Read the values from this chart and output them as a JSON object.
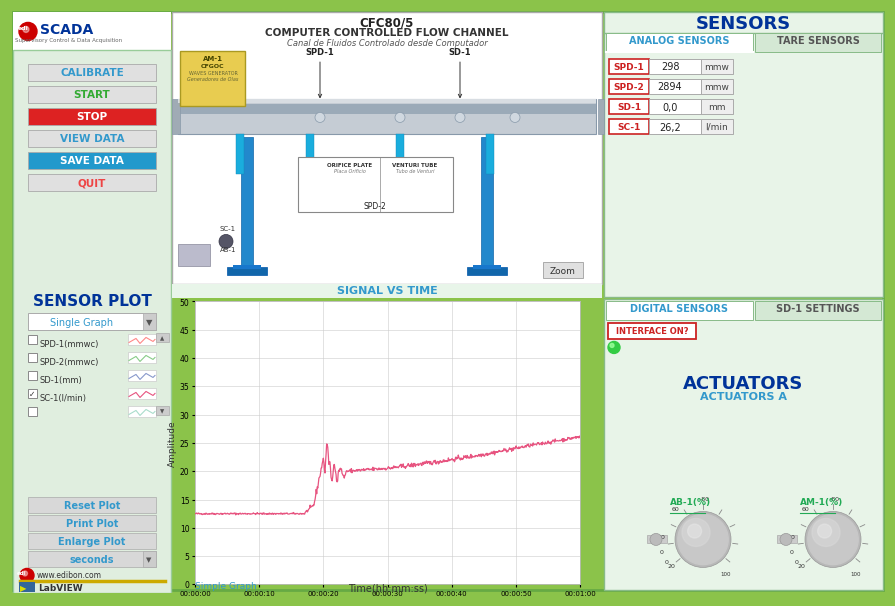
{
  "title": "CFC80/5",
  "subtitle1": "COMPUTER CONTROLLED FLOW CHANNEL",
  "subtitle2": "Canal de Fluidos Controlado desde Computador",
  "bg_outer": "#8bc34a",
  "bg_inner": "#e8f5e9",
  "bg_left_panel": "#e0eedf",
  "bg_right_panel": "#e8f4e8",
  "bg_diagram": "#f0f8f0",
  "scada_title": "SENSORS",
  "analog_sensors_tab": "ANALOG SENSORS",
  "tare_sensors_tab": "TARE SENSORS",
  "digital_sensors_tab": "DIGITAL SENSORS",
  "sd1_settings_tab": "SD-1 SETTINGS",
  "sensor_labels": [
    "SPD-1",
    "SPD-2",
    "SD-1",
    "SC-1"
  ],
  "sensor_values": [
    "298",
    "2894",
    "0,0",
    "26,2"
  ],
  "sensor_units": [
    "mmw",
    "mmw",
    "mm",
    "l/min"
  ],
  "interface_label": "INTERFACE ON?",
  "actuators_title": "ACTUATORS",
  "actuators_sub": "ACTUATORS A",
  "ab1_label": "AB-1(%)",
  "am1_label": "AM-1(%)",
  "signal_vs_time": "SIGNAL VS TIME",
  "sensor_plot_title": "SENSOR PLOT",
  "chart_xlabel": "Time(hh:mm:ss)",
  "chart_ylabel": "Amplitude",
  "chart_title_bottom": "Simple Graph",
  "yticks": [
    0,
    5,
    10,
    15,
    20,
    25,
    30,
    35,
    40,
    45,
    50
  ],
  "xtick_labels": [
    "00:00:00",
    "00:00:10",
    "00:00:20",
    "00:00:30",
    "00:00:40",
    "00:00:50",
    "00:01:00"
  ],
  "left_buttons": [
    "CALIBRATE",
    "START",
    "STOP",
    "VIEW DATA",
    "SAVE DATA",
    "QUIT"
  ],
  "btn_bg": [
    "#e0e0e0",
    "#e0e0e0",
    "#dd2222",
    "#e0e0e0",
    "#2299cc",
    "#e0e0e0"
  ],
  "btn_tc": [
    "#3399cc",
    "#33aa33",
    "#ffffff",
    "#3399cc",
    "#ffffff",
    "#ee4444"
  ],
  "legend_items": [
    "SPD-1(mmwc)",
    "SPD-2(mmwc)",
    "SD-1(mm)",
    "SC-1(l/min)",
    ""
  ],
  "legend_checked": [
    false,
    false,
    false,
    true,
    false
  ],
  "legend_line_colors": [
    "#ff8888",
    "#88cc88",
    "#8899cc",
    "#e75480",
    "#aaddcc"
  ],
  "plot_buttons": [
    "Reset Plot",
    "Print Plot",
    "Enlarge Plot",
    "seconds"
  ],
  "line_color": "#e75480",
  "grid_color": "#cccccc",
  "plot_bg": "#ffffff",
  "plot_border": "#bbbbbb",
  "green_border": "#88bb88"
}
